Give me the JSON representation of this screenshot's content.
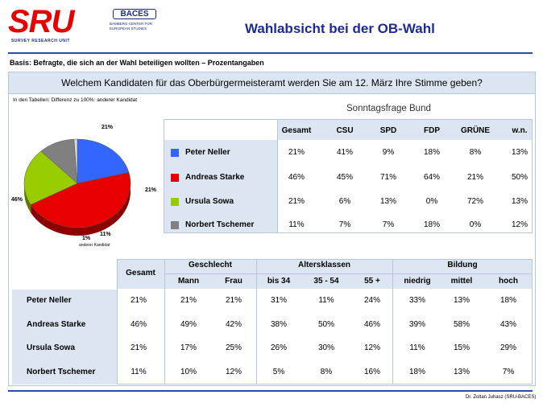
{
  "logo": {
    "main": "SRU",
    "sub": "SURVEY   RESEARCH   UNIT",
    "baces": "BACES",
    "baces_sub": "BAMBERG CENTER FOR EUROPEAN STUDIES"
  },
  "title": "Wahlabsicht bei der OB-Wahl",
  "basis": "Basis: Befragte, die sich an der Wahl beteiligen wollten – Prozentangaben",
  "question": "Welchem Kandidaten für das Oberbürgermeisteramt werden Sie am 12. März Ihre Stimme geben?",
  "note": "In den Tabellen: Differenz zu 100%: anderer Kandidat",
  "footer": "Dr. Zoltan Juhasz (SRU-BACES)",
  "chart_data": [
    {
      "type": "pie",
      "categories": [
        "Peter Neller",
        "Andreas Starke",
        "Ursula Sowa",
        "Norbert Tschemer",
        "anderer Kandidat"
      ],
      "values": [
        21,
        46,
        21,
        11,
        1
      ],
      "labels": [
        "21%",
        "46%",
        "21%",
        "11%",
        "1%"
      ],
      "other_label": "anderer Kandidat",
      "colors": [
        "#3366ff",
        "#e60000",
        "#99cc00",
        "#808080",
        "#d9d9d9"
      ]
    },
    {
      "type": "table",
      "title": "Sonntagsfrage Bund",
      "columns": [
        "Gesamt",
        "CSU",
        "SPD",
        "FDP",
        "GRÜNE",
        "w.n."
      ],
      "rows": [
        {
          "name": "Peter Neller",
          "values": [
            "21%",
            "41%",
            "9%",
            "18%",
            "8%",
            "13%"
          ]
        },
        {
          "name": "Andreas Starke",
          "values": [
            "46%",
            "45%",
            "71%",
            "64%",
            "21%",
            "50%"
          ]
        },
        {
          "name": "Ursula Sowa",
          "values": [
            "21%",
            "6%",
            "13%",
            "0%",
            "72%",
            "13%"
          ]
        },
        {
          "name": "Norbert Tschemer",
          "values": [
            "11%",
            "7%",
            "7%",
            "18%",
            "0%",
            "12%"
          ]
        }
      ]
    },
    {
      "type": "table",
      "groups": [
        {
          "label": "Geschlecht",
          "columns": [
            "Mann",
            "Frau"
          ]
        },
        {
          "label": "Altersklassen",
          "columns": [
            "bis 34",
            "35 - 54",
            "55 +"
          ]
        },
        {
          "label": "Bildung",
          "columns": [
            "niedrig",
            "mittel",
            "hoch"
          ]
        }
      ],
      "total_label": "Gesamt",
      "rows": [
        {
          "name": "Peter Neller",
          "values": [
            "21%",
            "21%",
            "21%",
            "31%",
            "11%",
            "24%",
            "33%",
            "13%",
            "18%"
          ]
        },
        {
          "name": "Andreas Starke",
          "values": [
            "46%",
            "49%",
            "42%",
            "38%",
            "50%",
            "46%",
            "39%",
            "58%",
            "43%"
          ]
        },
        {
          "name": "Ursula Sowa",
          "values": [
            "21%",
            "17%",
            "25%",
            "26%",
            "30%",
            "12%",
            "11%",
            "15%",
            "29%"
          ]
        },
        {
          "name": "Norbert Tschemer",
          "values": [
            "11%",
            "10%",
            "12%",
            "5%",
            "8%",
            "16%",
            "18%",
            "13%",
            "7%"
          ]
        }
      ]
    }
  ]
}
